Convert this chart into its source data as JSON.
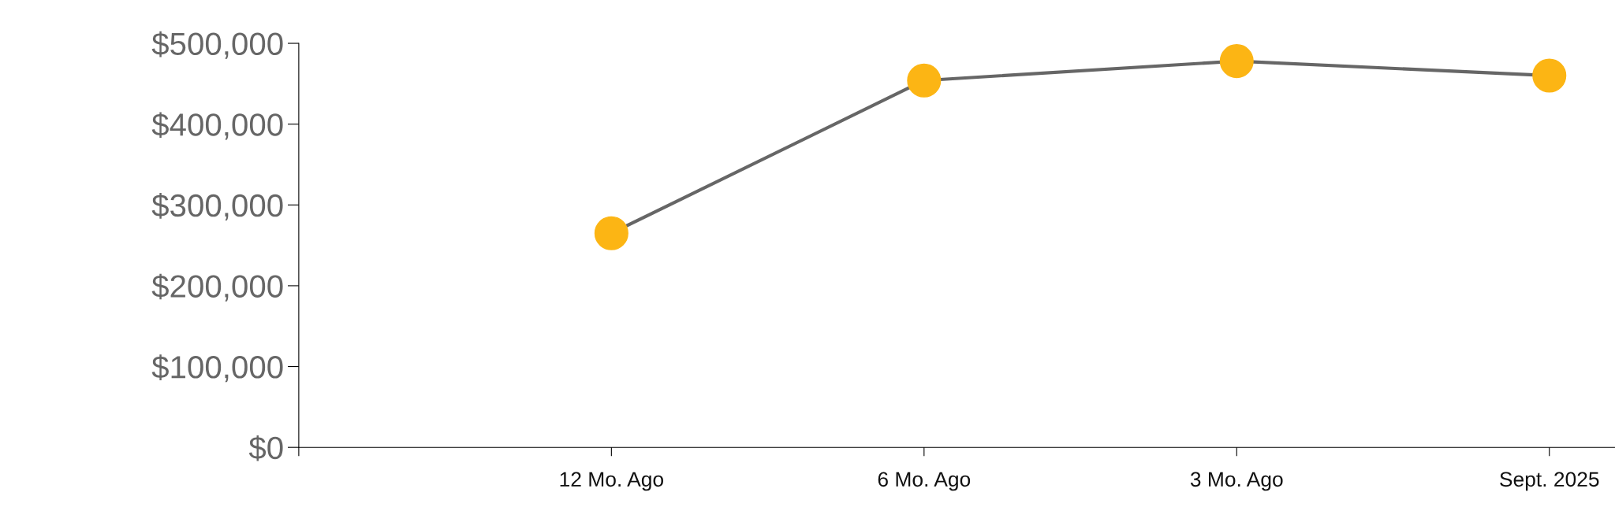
{
  "chart_data": {
    "type": "line",
    "categories": [
      null,
      "12 Mo. Ago",
      "6 Mo. Ago",
      "3 Mo. Ago",
      "Sept. 2025"
    ],
    "series": [
      {
        "color": "#666666",
        "colors": [
          null,
          "#fcb514",
          "#fcb514",
          "#fcb514",
          "#fcb514"
        ],
        "values": [
          null,
          265000,
          454000,
          478000,
          460000
        ]
      }
    ],
    "ylim": [
      0,
      500000
    ],
    "yticks": [
      {
        "value": 0,
        "label": "$0"
      },
      {
        "value": 100000,
        "label": "$100,000"
      },
      {
        "value": 200000,
        "label": "$200,000"
      },
      {
        "value": 300000,
        "label": "$300,000"
      },
      {
        "value": 400000,
        "label": "$400,000"
      },
      {
        "value": 500000,
        "label": "$500,000"
      }
    ],
    "grid": false,
    "legend": false,
    "marker": "circle",
    "line_style": "solid"
  }
}
